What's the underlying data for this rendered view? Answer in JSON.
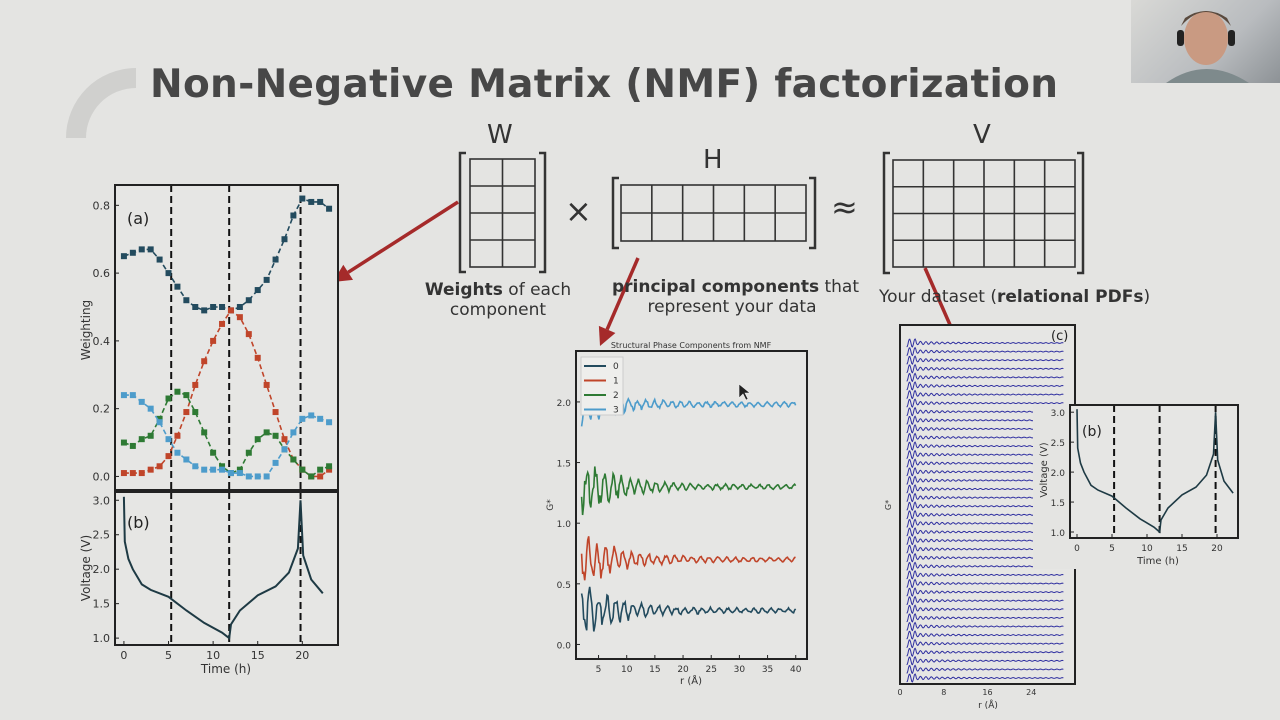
{
  "slide": {
    "title": "Non-Negative Matrix (NMF) factorization",
    "matrix_w_label": "W",
    "matrix_h_label": "H",
    "matrix_v_label": "V",
    "times_symbol": "×",
    "approx_symbol": "≈",
    "w_caption_bold": "Weights",
    "w_caption_rest": " of each",
    "w_caption_line2": "component",
    "h_caption_bold": "principal components",
    "h_caption_rest": " that",
    "h_caption_line2": "represent your data",
    "v_caption_pre": "Your dataset (",
    "v_caption_bold": "relational PDFs",
    "v_caption_post": ")",
    "arrow_color": "#a52a2a"
  },
  "webcam": {
    "icon": "participant-video-thumbnail"
  },
  "chart_data": [
    {
      "type": "line",
      "panel_label": "(a)",
      "ylabel": "Weighting",
      "xlabel": "",
      "xlim": [
        -1,
        24
      ],
      "ylim": [
        -0.04,
        0.86
      ],
      "yticks": [
        "0.0",
        "0.2",
        "0.4",
        "0.6",
        "0.8"
      ],
      "x": [
        0,
        1,
        2,
        3,
        4,
        5,
        6,
        7,
        8,
        9,
        10,
        11,
        12,
        13,
        14,
        15,
        16,
        17,
        18,
        19,
        20,
        21,
        22,
        23
      ],
      "series": [
        {
          "color": "#234b5e",
          "values": [
            0.65,
            0.66,
            0.67,
            0.67,
            0.64,
            0.6,
            0.56,
            0.52,
            0.5,
            0.49,
            0.5,
            0.5,
            0.49,
            0.5,
            0.52,
            0.55,
            0.58,
            0.64,
            0.7,
            0.77,
            0.82,
            0.81,
            0.81,
            0.79
          ]
        },
        {
          "color": "#c0452a",
          "values": [
            0.01,
            0.01,
            0.01,
            0.02,
            0.03,
            0.06,
            0.12,
            0.19,
            0.27,
            0.34,
            0.4,
            0.45,
            0.49,
            0.47,
            0.42,
            0.35,
            0.27,
            0.19,
            0.11,
            0.05,
            0.02,
            0.0,
            0.0,
            0.02
          ]
        },
        {
          "color": "#2e7a34",
          "values": [
            0.1,
            0.09,
            0.11,
            0.12,
            0.17,
            0.23,
            0.25,
            0.24,
            0.19,
            0.13,
            0.07,
            0.03,
            0.01,
            0.02,
            0.07,
            0.11,
            0.13,
            0.12,
            0.08,
            0.05,
            0.02,
            0.0,
            0.02,
            0.03
          ]
        },
        {
          "color": "#4d9ccb",
          "values": [
            0.24,
            0.24,
            0.22,
            0.2,
            0.16,
            0.11,
            0.07,
            0.05,
            0.03,
            0.02,
            0.02,
            0.02,
            0.01,
            0.01,
            0.0,
            0.0,
            0.0,
            0.04,
            0.08,
            0.13,
            0.17,
            0.18,
            0.17,
            0.16
          ]
        }
      ],
      "vlines": [
        5.3,
        11.8,
        19.8
      ]
    },
    {
      "type": "line",
      "panel_label": "(b)",
      "ylabel": "Voltage (V)",
      "xlabel": "Time (h)",
      "xlim": [
        -1,
        24
      ],
      "ylim": [
        0.9,
        3.12
      ],
      "xticks": [
        "0",
        "5",
        "10",
        "15",
        "20"
      ],
      "yticks": [
        "1.0",
        "1.5",
        "2.0",
        "2.5",
        "3.0"
      ],
      "x": [
        0,
        0.1,
        0.5,
        1,
        2,
        3,
        5,
        7,
        9,
        11,
        11.8,
        12,
        13,
        15,
        17,
        18.5,
        19.5,
        19.8,
        20.1,
        21,
        22.3
      ],
      "values": [
        3.05,
        2.4,
        2.15,
        2.0,
        1.78,
        1.7,
        1.6,
        1.4,
        1.22,
        1.08,
        1.0,
        1.2,
        1.4,
        1.62,
        1.75,
        1.95,
        2.3,
        3.0,
        2.2,
        1.85,
        1.65
      ],
      "vlines": [
        5.3,
        11.8,
        19.8
      ]
    },
    {
      "type": "line",
      "title": "Structural Phase Components from NMF",
      "xlabel": "r (Å)",
      "ylabel": "G*",
      "xlim": [
        1,
        42
      ],
      "ylim": [
        -0.12,
        2.42
      ],
      "xticks": [
        "5",
        "10",
        "15",
        "20",
        "25",
        "30",
        "35",
        "40"
      ],
      "yticks": [
        "0.0",
        "0.5",
        "1.0",
        "1.5",
        "2.0"
      ],
      "legend": "top-left",
      "series": [
        {
          "name": "0",
          "color": "#234b5e",
          "offset": 0.28
        },
        {
          "name": "1",
          "color": "#c0452a",
          "offset": 0.7
        },
        {
          "name": "2",
          "color": "#2e7a34",
          "offset": 1.3
        },
        {
          "name": "3",
          "color": "#4d9ccb",
          "offset": 1.98
        }
      ]
    },
    {
      "type": "line",
      "panel_label": "(c)",
      "xlabel": "r (Å)",
      "ylabel": "G*",
      "xticks": [
        "0",
        "8",
        "16",
        "24"
      ],
      "xlim": [
        0,
        32
      ],
      "color": "#2f2fa0",
      "curve_count": 40
    },
    {
      "type": "line",
      "panel_label": "(b)",
      "ylabel": "Voltage (V)",
      "xlabel": "Time (h)",
      "xticks": [
        "0",
        "5",
        "10",
        "15",
        "20"
      ],
      "yticks": [
        "1.0",
        "1.5",
        "2.0",
        "2.5",
        "3.0"
      ],
      "vlines": [
        5.3,
        11.8,
        19.8
      ]
    }
  ]
}
